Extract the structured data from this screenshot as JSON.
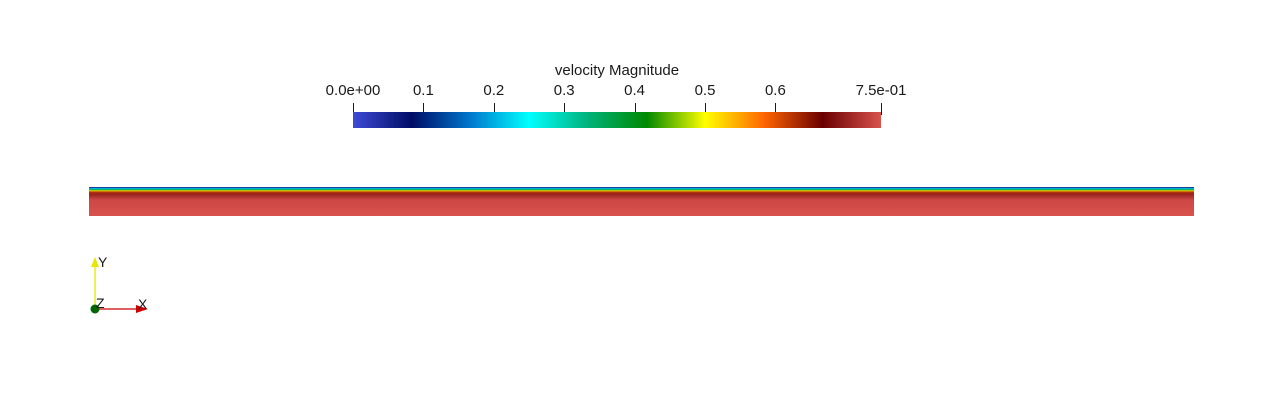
{
  "legend": {
    "title": "velocity Magnitude",
    "range": [
      0.0,
      0.75
    ],
    "ticks": [
      {
        "label": "0.0e+00",
        "value": 0.0
      },
      {
        "label": "0.1",
        "value": 0.1
      },
      {
        "label": "0.2",
        "value": 0.2
      },
      {
        "label": "0.3",
        "value": 0.3
      },
      {
        "label": "0.4",
        "value": 0.4
      },
      {
        "label": "0.5",
        "value": 0.5
      },
      {
        "label": "0.6",
        "value": 0.6
      },
      {
        "label": "7.5e-01",
        "value": 0.75
      }
    ],
    "colormap": [
      "#3e4bd6",
      "#000d66",
      "#0077cc",
      "#00ffff",
      "#00b37a",
      "#008800",
      "#ffff00",
      "#ff6600",
      "#6a0000",
      "#d9524e"
    ]
  },
  "axes": {
    "x_label": "X",
    "y_label": "Y",
    "z_label": "Z",
    "x_color": "#cc0000",
    "y_color": "#e6e600",
    "z_color": "#006600"
  }
}
